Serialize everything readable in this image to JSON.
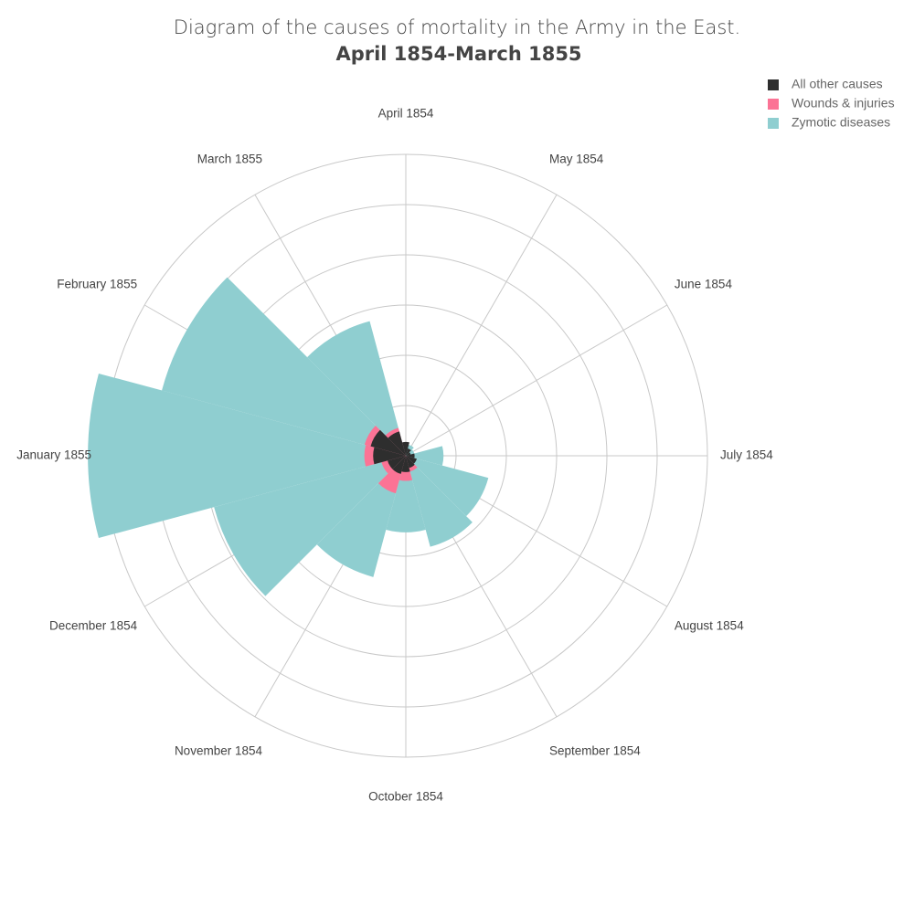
{
  "chart_data": {
    "type": "barpolar",
    "title": "Diagram of the causes of mortality in the Army in the East.",
    "subtitle": "April 1854-March 1855",
    "categories": [
      "April 1854",
      "May 1854",
      "June 1854",
      "July 1854",
      "August 1854",
      "September 1854",
      "October 1854",
      "November 1854",
      "December 1854",
      "January 1855",
      "February 1855",
      "March 1855"
    ],
    "series": [
      {
        "name": "All other causes",
        "color": "#2e2e2e",
        "values": [
          55,
          30,
          20,
          35,
          45,
          50,
          65,
          75,
          75,
          130,
          145,
          100
        ]
      },
      {
        "name": "Wounds & injuries",
        "color": "#fb7395",
        "values": [
          0,
          0,
          0,
          0,
          18,
          65,
          100,
          155,
          100,
          165,
          170,
          115
        ]
      },
      {
        "name": "Zymotic diseases",
        "color": "#8fced0",
        "values": [
          35,
          45,
          35,
          150,
          340,
          375,
          305,
          500,
          790,
          1265,
          1005,
          555
        ]
      }
    ],
    "rlim": [
      0,
      1200
    ],
    "rticks": [
      200,
      400,
      600,
      800,
      1000,
      1200
    ],
    "direction": "clockwise",
    "rotation_start": "top",
    "legend": "top-right"
  }
}
